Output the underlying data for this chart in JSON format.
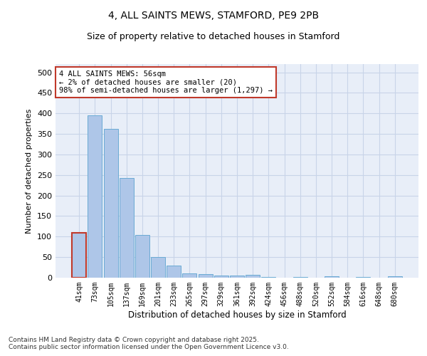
{
  "title_line1": "4, ALL SAINTS MEWS, STAMFORD, PE9 2PB",
  "title_line2": "Size of property relative to detached houses in Stamford",
  "xlabel": "Distribution of detached houses by size in Stamford",
  "ylabel": "Number of detached properties",
  "categories": [
    "41sqm",
    "73sqm",
    "105sqm",
    "137sqm",
    "169sqm",
    "201sqm",
    "233sqm",
    "265sqm",
    "297sqm",
    "329sqm",
    "361sqm",
    "392sqm",
    "424sqm",
    "456sqm",
    "488sqm",
    "520sqm",
    "552sqm",
    "584sqm",
    "616sqm",
    "648sqm",
    "680sqm"
  ],
  "values": [
    110,
    395,
    362,
    243,
    104,
    50,
    29,
    10,
    8,
    6,
    5,
    7,
    1,
    0,
    1,
    0,
    3,
    0,
    1,
    0,
    4
  ],
  "bar_color": "#aec6e8",
  "bar_edge_color": "#6aaad4",
  "highlight_edge_color": "#c0392b",
  "annotation_text": "4 ALL SAINTS MEWS: 56sqm\n← 2% of detached houses are smaller (20)\n98% of semi-detached houses are larger (1,297) →",
  "ylim": [
    0,
    520
  ],
  "yticks": [
    0,
    50,
    100,
    150,
    200,
    250,
    300,
    350,
    400,
    450,
    500
  ],
  "grid_color": "#c8d4e8",
  "background_color": "#e8eef8",
  "footer_line1": "Contains HM Land Registry data © Crown copyright and database right 2025.",
  "footer_line2": "Contains public sector information licensed under the Open Government Licence v3.0."
}
